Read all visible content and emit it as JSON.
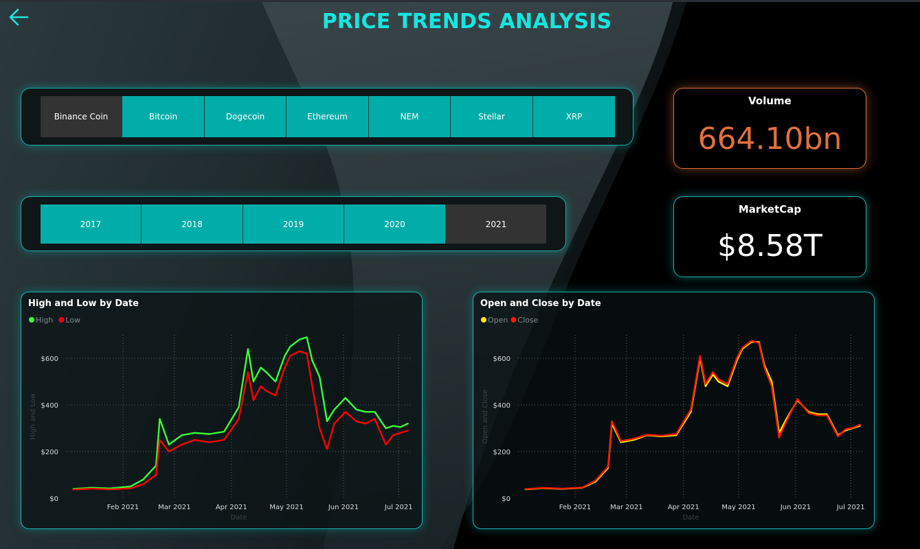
{
  "header": {
    "title": "PRICE TRENDS ANALYSIS"
  },
  "coin_slicer": {
    "selected": "Binance Coin",
    "options": [
      "Binance Coin",
      "Bitcoin",
      "Dogecoin",
      "Ethereum",
      "NEM",
      "Stellar",
      "XRP"
    ]
  },
  "year_slicer": {
    "selected": "2021",
    "options": [
      "2017",
      "2018",
      "2019",
      "2020",
      "2021"
    ]
  },
  "cards": {
    "volume": {
      "label": "Volume",
      "value": "664.10bn",
      "color": "#e0703c"
    },
    "marketcap": {
      "label": "MarketCap",
      "value": "$8.58T",
      "color": "#ffffff"
    }
  },
  "colors": {
    "accent": "#16e6e0",
    "button": "#00ada8",
    "selected_button": "#333333"
  },
  "chart_data": [
    {
      "type": "line",
      "title": "High and Low by Date",
      "xlabel": "Date",
      "ylabel": "High and Low",
      "x_ticks": [
        "Feb 2021",
        "Mar 2021",
        "Apr 2021",
        "May 2021",
        "Jun 2021",
        "Jul 2021"
      ],
      "y_ticks": [
        "$0",
        "$200",
        "$400",
        "$600"
      ],
      "ylim": [
        0,
        700
      ],
      "grid": true,
      "legend_position": "top-left",
      "x": [
        "2021-01-05",
        "2021-01-15",
        "2021-01-25",
        "2021-02-05",
        "2021-02-12",
        "2021-02-19",
        "2021-02-21",
        "2021-02-26",
        "2021-03-05",
        "2021-03-12",
        "2021-03-20",
        "2021-03-28",
        "2021-04-05",
        "2021-04-10",
        "2021-04-13",
        "2021-04-17",
        "2021-04-20",
        "2021-04-25",
        "2021-04-30",
        "2021-05-03",
        "2021-05-08",
        "2021-05-12",
        "2021-05-15",
        "2021-05-19",
        "2021-05-23",
        "2021-05-27",
        "2021-06-02",
        "2021-06-08",
        "2021-06-13",
        "2021-06-18",
        "2021-06-24",
        "2021-06-28",
        "2021-07-02",
        "2021-07-06"
      ],
      "series": [
        {
          "name": "High",
          "color": "#39ff39",
          "values": [
            40,
            45,
            42,
            50,
            80,
            140,
            340,
            230,
            270,
            280,
            275,
            285,
            390,
            640,
            500,
            560,
            540,
            500,
            610,
            650,
            680,
            690,
            590,
            520,
            330,
            380,
            430,
            380,
            370,
            370,
            300,
            310,
            305,
            320
          ]
        },
        {
          "name": "Low",
          "color": "#ff0000",
          "values": [
            37,
            41,
            38,
            42,
            60,
            100,
            250,
            200,
            230,
            250,
            240,
            250,
            340,
            540,
            420,
            480,
            460,
            440,
            560,
            610,
            630,
            620,
            480,
            300,
            210,
            320,
            370,
            330,
            320,
            340,
            230,
            270,
            280,
            290
          ]
        }
      ]
    },
    {
      "type": "line",
      "title": "Open and Close by Date",
      "xlabel": "Date",
      "ylabel": "Open and Close",
      "x_ticks": [
        "Feb 2021",
        "Mar 2021",
        "Apr 2021",
        "May 2021",
        "Jun 2021",
        "Jul 2021"
      ],
      "y_ticks": [
        "$0",
        "$200",
        "$400",
        "$600"
      ],
      "ylim": [
        0,
        700
      ],
      "grid": true,
      "legend_position": "top-left",
      "x": [
        "2021-01-05",
        "2021-01-15",
        "2021-01-25",
        "2021-02-05",
        "2021-02-12",
        "2021-02-19",
        "2021-02-21",
        "2021-02-26",
        "2021-03-05",
        "2021-03-12",
        "2021-03-20",
        "2021-03-28",
        "2021-04-05",
        "2021-04-10",
        "2021-04-13",
        "2021-04-17",
        "2021-04-20",
        "2021-04-25",
        "2021-04-30",
        "2021-05-03",
        "2021-05-08",
        "2021-05-12",
        "2021-05-15",
        "2021-05-19",
        "2021-05-23",
        "2021-05-27",
        "2021-06-02",
        "2021-06-08",
        "2021-06-13",
        "2021-06-18",
        "2021-06-24",
        "2021-06-28",
        "2021-07-02",
        "2021-07-06"
      ],
      "series": [
        {
          "name": "Open",
          "color": "#ffee00",
          "values": [
            38,
            43,
            40,
            45,
            70,
            130,
            320,
            240,
            250,
            270,
            265,
            270,
            370,
            600,
            480,
            530,
            500,
            480,
            590,
            640,
            670,
            670,
            570,
            500,
            280,
            340,
            420,
            370,
            360,
            360,
            270,
            290,
            300,
            310
          ]
        },
        {
          "name": "Close",
          "color": "#ff1a00",
          "values": [
            39,
            44,
            41,
            46,
            75,
            135,
            330,
            245,
            255,
            272,
            268,
            275,
            380,
            610,
            490,
            540,
            510,
            490,
            600,
            645,
            675,
            665,
            560,
            480,
            260,
            330,
            425,
            365,
            355,
            355,
            265,
            295,
            302,
            315
          ]
        }
      ]
    }
  ]
}
